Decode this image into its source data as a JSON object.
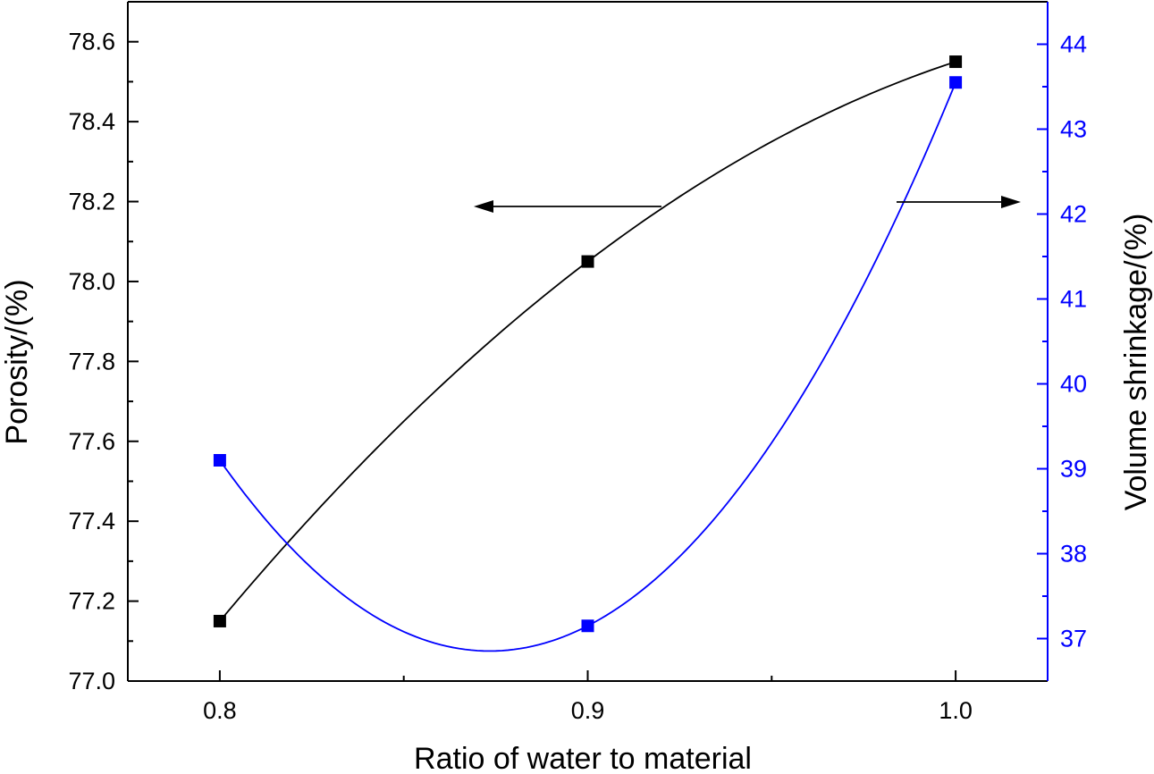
{
  "chart_data": {
    "type": "line",
    "title": "",
    "xlabel": "Ratio of water to material",
    "ylabel_left": "Porosity/(%)",
    "ylabel_right": "Volume shrinkage/(%)",
    "x": [
      0.8,
      0.9,
      1.0
    ],
    "x_ticks": [
      "0.8",
      "0.9",
      "1.0"
    ],
    "xlim": [
      0.775,
      1.025
    ],
    "ylim_left": [
      77.0,
      78.7
    ],
    "ylim_right": [
      36.5,
      44.5
    ],
    "y_ticks_left": [
      "77.0",
      "77.2",
      "77.4",
      "77.6",
      "77.8",
      "78.0",
      "78.2",
      "78.4",
      "78.6"
    ],
    "y_ticks_right": [
      "37",
      "38",
      "39",
      "40",
      "41",
      "42",
      "43",
      "44"
    ],
    "grid": false,
    "series": [
      {
        "name": "Porosity",
        "axis": "left",
        "color": "#000000",
        "marker": "square",
        "values": [
          77.15,
          78.05,
          78.55
        ]
      },
      {
        "name": "Volume shrinkage",
        "axis": "right",
        "color": "#0000ff",
        "marker": "square",
        "values": [
          39.1,
          37.15,
          43.55
        ]
      }
    ],
    "annotations": [
      {
        "type": "arrow",
        "direction": "left",
        "target_series": "Porosity"
      },
      {
        "type": "arrow",
        "direction": "right",
        "target_series": "Volume shrinkage"
      }
    ]
  },
  "colors": {
    "left_axis": "#000000",
    "right_axis": "#0000ff"
  }
}
